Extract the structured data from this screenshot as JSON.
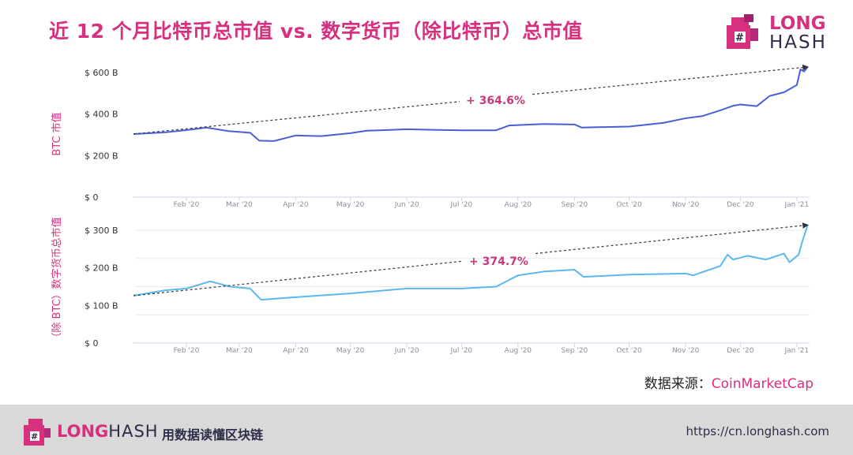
{
  "header": {
    "title": "近 12 个月比特币总市值  vs.  数字货币（除比特币）总市值"
  },
  "logo": {
    "word1": "LONG",
    "word2": "HASH"
  },
  "colors": {
    "accent": "#d6307f",
    "btc_line": "#4a5fd6",
    "alt_line": "#5bb8ec",
    "footer_bg": "#d9d9d9"
  },
  "chart_data": [
    {
      "type": "line",
      "title": "",
      "ylabel": "BTC 市值",
      "ylim": [
        0,
        600
      ],
      "yticks": [
        {
          "v": 0,
          "label": "$ 0"
        },
        {
          "v": 200,
          "label": "$ 200 B"
        },
        {
          "v": 400,
          "label": "$ 400 B"
        },
        {
          "v": 600,
          "label": "$ 600 B"
        }
      ],
      "xticks": [
        {
          "d": "2020-02-01",
          "label": "Feb '20"
        },
        {
          "d": "2020-03-01",
          "label": "Mar '20"
        },
        {
          "d": "2020-04-01",
          "label": "Apr '20"
        },
        {
          "d": "2020-05-01",
          "label": "May '20"
        },
        {
          "d": "2020-06-01",
          "label": "Jun '20"
        },
        {
          "d": "2020-07-01",
          "label": "Jul '20"
        },
        {
          "d": "2020-08-01",
          "label": "Aug '20"
        },
        {
          "d": "2020-09-01",
          "label": "Sep '20"
        },
        {
          "d": "2020-10-01",
          "label": "Oct '20"
        },
        {
          "d": "2020-11-01",
          "label": "Nov '20"
        },
        {
          "d": "2020-12-01",
          "label": "Dec '20"
        },
        {
          "d": "2021-01-01",
          "label": "Jan '21"
        }
      ],
      "annotation": "+ 364.6%",
      "series": [
        {
          "name": "BTC 市值",
          "unit": "B USD",
          "points": [
            [
              "2020-01-03",
              304
            ],
            [
              "2020-01-20",
              312
            ],
            [
              "2020-02-01",
              323
            ],
            [
              "2020-02-12",
              335
            ],
            [
              "2020-02-24",
              318
            ],
            [
              "2020-03-07",
              310
            ],
            [
              "2020-03-12",
              272
            ],
            [
              "2020-03-20",
              270
            ],
            [
              "2020-04-01",
              297
            ],
            [
              "2020-04-15",
              294
            ],
            [
              "2020-05-01",
              308
            ],
            [
              "2020-05-10",
              320
            ],
            [
              "2020-05-20",
              323
            ],
            [
              "2020-06-01",
              327
            ],
            [
              "2020-06-15",
              324
            ],
            [
              "2020-07-01",
              322
            ],
            [
              "2020-07-20",
              322
            ],
            [
              "2020-07-27",
              345
            ],
            [
              "2020-08-15",
              352
            ],
            [
              "2020-09-01",
              350
            ],
            [
              "2020-09-05",
              335
            ],
            [
              "2020-09-20",
              338
            ],
            [
              "2020-10-01",
              340
            ],
            [
              "2020-10-20",
              358
            ],
            [
              "2020-11-01",
              380
            ],
            [
              "2020-11-10",
              390
            ],
            [
              "2020-11-20",
              418
            ],
            [
              "2020-11-27",
              440
            ],
            [
              "2020-12-01",
              446
            ],
            [
              "2020-12-10",
              438
            ],
            [
              "2020-12-17",
              487
            ],
            [
              "2020-12-25",
              505
            ],
            [
              "2021-01-01",
              540
            ],
            [
              "2021-01-03",
              615
            ],
            [
              "2021-01-05",
              605
            ],
            [
              "2021-01-07",
              627
            ]
          ]
        }
      ]
    },
    {
      "type": "line",
      "title": "",
      "ylabel": "（除 BTC）数字货币总市值",
      "ylim": [
        0,
        300
      ],
      "yticks": [
        {
          "v": 0,
          "label": "$ 0"
        },
        {
          "v": 100,
          "label": "$ 100 B"
        },
        {
          "v": 200,
          "label": "$ 200 B"
        },
        {
          "v": 300,
          "label": "$ 300 B"
        }
      ],
      "xticks": [
        {
          "d": "2020-02-01",
          "label": "Feb '20"
        },
        {
          "d": "2020-03-01",
          "label": "Mar '20"
        },
        {
          "d": "2020-04-01",
          "label": "Apr '20"
        },
        {
          "d": "2020-05-01",
          "label": "May '20"
        },
        {
          "d": "2020-06-01",
          "label": "Jun '20"
        },
        {
          "d": "2020-07-01",
          "label": "Jul '20"
        },
        {
          "d": "2020-08-01",
          "label": "Aug '20"
        },
        {
          "d": "2020-09-01",
          "label": "Sep '20"
        },
        {
          "d": "2020-10-01",
          "label": "Oct '20"
        },
        {
          "d": "2020-11-01",
          "label": "Nov '20"
        },
        {
          "d": "2020-12-01",
          "label": "Dec '20"
        },
        {
          "d": "2021-01-01",
          "label": "Jan '21"
        }
      ],
      "annotation": "+ 374.7%",
      "series": [
        {
          "name": "（除 BTC）数字货币总市值",
          "unit": "B USD",
          "points": [
            [
              "2020-01-03",
              126
            ],
            [
              "2020-01-20",
              140
            ],
            [
              "2020-02-01",
              145
            ],
            [
              "2020-02-14",
              164
            ],
            [
              "2020-02-25",
              150
            ],
            [
              "2020-03-07",
              145
            ],
            [
              "2020-03-13",
              115
            ],
            [
              "2020-04-01",
              122
            ],
            [
              "2020-05-01",
              132
            ],
            [
              "2020-06-01",
              145
            ],
            [
              "2020-07-01",
              145
            ],
            [
              "2020-07-20",
              150
            ],
            [
              "2020-08-01",
              180
            ],
            [
              "2020-08-15",
              190
            ],
            [
              "2020-09-01",
              195
            ],
            [
              "2020-09-06",
              176
            ],
            [
              "2020-10-01",
              182
            ],
            [
              "2020-11-01",
              185
            ],
            [
              "2020-11-05",
              180
            ],
            [
              "2020-11-20",
              205
            ],
            [
              "2020-11-24",
              235
            ],
            [
              "2020-11-27",
              222
            ],
            [
              "2020-12-05",
              232
            ],
            [
              "2020-12-15",
              222
            ],
            [
              "2020-12-25",
              238
            ],
            [
              "2020-12-28",
              215
            ],
            [
              "2021-01-02",
              235
            ],
            [
              "2021-01-04",
              270
            ],
            [
              "2021-01-07",
              314
            ]
          ]
        }
      ]
    }
  ],
  "source": {
    "label": "数据来源：",
    "name": "CoinMarketCap"
  },
  "footer": {
    "brand1": "LONG",
    "brand2": "HASH",
    "slogan": "用数据读懂区块链",
    "url": "https://cn.longhash.com"
  }
}
